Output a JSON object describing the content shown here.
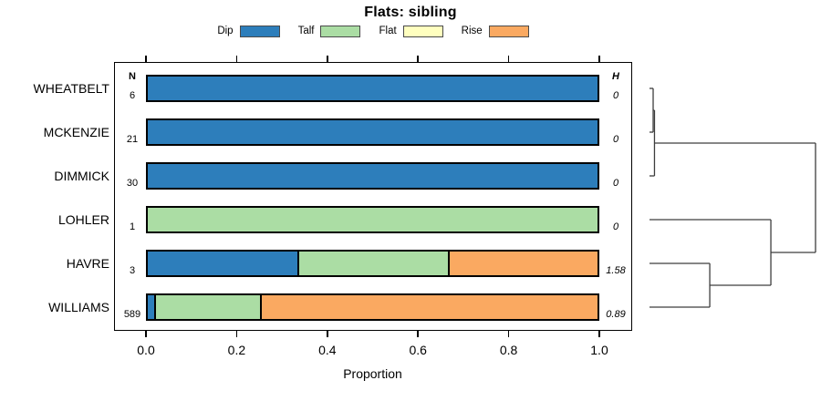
{
  "title": "Flats: sibling",
  "columns": {
    "n_header": "N",
    "h_header": "H"
  },
  "axis": {
    "xlabel": "Proportion",
    "ticks": [
      "0.0",
      "0.2",
      "0.4",
      "0.6",
      "0.8",
      "1.0"
    ],
    "tick_values": [
      0.0,
      0.2,
      0.4,
      0.6,
      0.8,
      1.0
    ]
  },
  "legend": [
    {
      "label": "Dip",
      "color": "#2D7EBB"
    },
    {
      "label": "Talf",
      "color": "#ABDDA4"
    },
    {
      "label": "Flat",
      "color": "#FFFFBF"
    },
    {
      "label": "Rise",
      "color": "#FAA961"
    }
  ],
  "chart_data": {
    "type": "bar",
    "orientation": "horizontal",
    "stacked": true,
    "title": "Flats: sibling",
    "xlabel": "Proportion",
    "xlim": [
      0,
      1
    ],
    "categories": [
      "WHEATBELT",
      "MCKENZIE",
      "DIMMICK",
      "LOHLER",
      "HAVRE",
      "WILLIAMS"
    ],
    "n_values": [
      "6",
      "21",
      "30",
      "1",
      "3",
      "589"
    ],
    "h_values": [
      "0",
      "0",
      "0",
      "0",
      "1.58",
      "0.89"
    ],
    "series": [
      {
        "name": "Dip",
        "values": [
          1,
          1,
          1,
          0,
          0.3333,
          0.015
        ]
      },
      {
        "name": "Talf",
        "values": [
          0,
          0,
          0,
          1,
          0.3333,
          0.235
        ]
      },
      {
        "name": "Flat",
        "values": [
          0,
          0,
          0,
          0,
          0,
          0
        ]
      },
      {
        "name": "Rise",
        "values": [
          0,
          0,
          0,
          0,
          0.3334,
          0.75
        ]
      }
    ],
    "legend_position": "top",
    "grid": false
  },
  "dendrogram": {
    "position": "right",
    "leaf_order": [
      "WHEATBELT",
      "MCKENZIE",
      "DIMMICK",
      "LOHLER",
      "HAVRE",
      "WILLIAMS"
    ],
    "merges": [
      {
        "a": 0,
        "b": 1,
        "height": 0.022
      },
      {
        "a": "m0",
        "b": 2,
        "height": 0.03
      },
      {
        "a": 4,
        "b": 5,
        "height": 0.363
      },
      {
        "a": 3,
        "b": "m2",
        "height": 0.731
      },
      {
        "a": "m1",
        "b": "m3",
        "height": 1.0
      }
    ]
  }
}
